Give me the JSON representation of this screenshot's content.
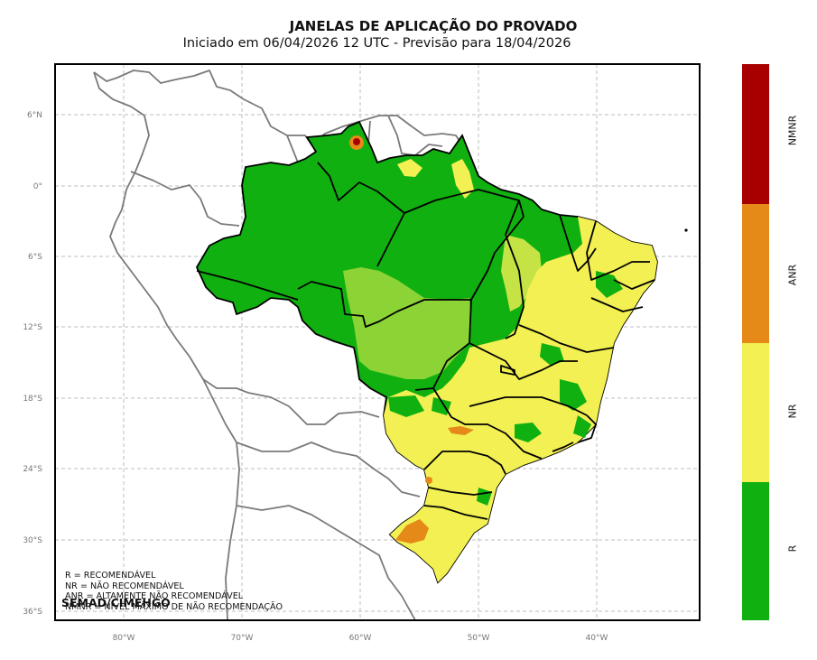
{
  "title": "JANELAS DE APLICAÇÃO DO PROVADO",
  "subtitle": "Iniciado em 06/04/2026 12 UTC - Previsão para 18/04/2026",
  "credit": "SEMAD/CIMEHGO",
  "legend_text": [
    "R = RECOMENDÁVEL",
    "NR = NÃO RECOMENDÁVEL",
    "ANR = ALTAMENTE NÃO RECOMENDÁVEL",
    "NMNR = NÍVEL MÁXIMO DE NÃO RECOMENDAÇÃO"
  ],
  "colorbar": [
    {
      "label": "NMNR",
      "color": "#a80000"
    },
    {
      "label": "ANR",
      "color": "#e58a19"
    },
    {
      "label": "NR",
      "color": "#f2f053"
    },
    {
      "label": "R",
      "color": "#10b010"
    }
  ],
  "lat_ticks": [
    "6°N",
    "0°",
    "6°S",
    "12°S",
    "18°S",
    "24°S",
    "30°S",
    "36°S"
  ],
  "lon_ticks": [
    "80°W",
    "70°W",
    "60°W",
    "50°W",
    "40°W"
  ],
  "colors": {
    "R": "#10b010",
    "NR": "#f2f053",
    "ANR": "#e58a19",
    "NMNR": "#a80000",
    "coast": "#7a7a7a",
    "border": "#000000",
    "grid": "#bdbdbd"
  }
}
